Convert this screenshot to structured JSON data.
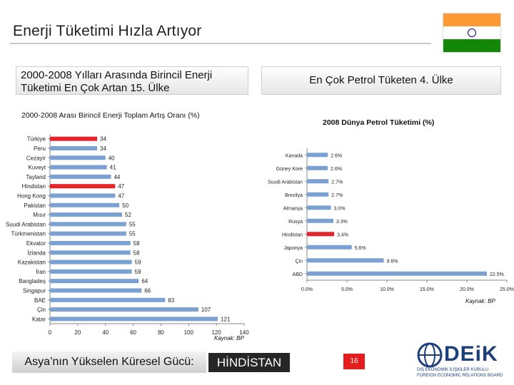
{
  "title": "Enerji Tüketimi Hızla Artıyor",
  "colors": {
    "bar": "#7ba1d2",
    "highlight": "#e4232a",
    "flag_saffron": "#ff9933",
    "flag_white": "#ffffff",
    "flag_green": "#138808",
    "flag_wheel": "#000080"
  },
  "header_left": "2000-2008 Yılları Arasında Birincil Enerji Tüketimi En Çok Artan 15. Ülke",
  "header_right": "En Çok Petrol Tüketen 4. Ülke",
  "footer": {
    "left": "Asya’nın Yükselen Küresel Gücü:",
    "right": "HİNDİSTAN",
    "page": "16"
  },
  "logo": {
    "word": "DEiK",
    "sub1": "DIŞ EKONOMİK İLİŞKİLER KURULU",
    "sub2": "FOREIGN ECONOMIC RELATIONS BOARD"
  },
  "icons": {
    "flag": "india-flag",
    "logo": "deik-logo"
  },
  "chart_data": [
    {
      "type": "bar",
      "orientation": "horizontal",
      "title": "2000-2008 Arası Birincil Enerji Toplam Artış Oranı (%)",
      "source": "Kaynak: BP",
      "categories": [
        "Türkiye",
        "Peru",
        "Cezayir",
        "Kuveyt",
        "Tayland",
        "Hindistan",
        "Hong Kong",
        "Pakistan",
        "Mısır",
        "Suudi Arabistan",
        "Türkmenistan",
        "Ekvator",
        "İzlanda",
        "Kazakistan",
        "İran",
        "Bangladeş",
        "Singapur",
        "BAE",
        "Çin",
        "Katar"
      ],
      "values": [
        34,
        34,
        40,
        41,
        44,
        47,
        47,
        50,
        52,
        55,
        55,
        58,
        58,
        59,
        59,
        64,
        66,
        83,
        107,
        121
      ],
      "value_labels": [
        "34",
        "34",
        "40",
        "41",
        "44",
        "47",
        "47",
        "50",
        "52",
        "55",
        "55",
        "58",
        "58",
        "59",
        "59",
        "64",
        "66",
        "83",
        "107",
        "121"
      ],
      "highlight": [
        "Türkiye",
        "Hindistan"
      ],
      "xlim": [
        0,
        140
      ],
      "xticks": [
        "0",
        "20",
        "40",
        "60",
        "80",
        "100",
        "120",
        "140"
      ]
    },
    {
      "type": "bar",
      "orientation": "horizontal",
      "title": "2008 Dünya Petrol Tüketimi (%)",
      "source": "Kaynak: BP",
      "categories": [
        "Kanada",
        "Güney Kore",
        "Suudi Arabistan",
        "Brezilya",
        "Almanya",
        "Rusya",
        "Hindistan",
        "Japonya",
        "Çin",
        "ABD"
      ],
      "values": [
        2.6,
        2.6,
        2.7,
        2.7,
        3.0,
        3.3,
        3.4,
        5.6,
        9.6,
        22.5
      ],
      "value_labels": [
        "2.6%",
        "2.6%",
        "2.7%",
        "2.7%",
        "3.0%",
        "3.3%",
        "3.4%",
        "5.6%",
        "9.6%",
        "22.5%"
      ],
      "highlight": [
        "Hindistan"
      ],
      "xlim": [
        0,
        25
      ],
      "xticks": [
        "0.0%",
        "5.0%",
        "10.0%",
        "15.0%",
        "20.0%",
        "25.0%"
      ]
    }
  ]
}
